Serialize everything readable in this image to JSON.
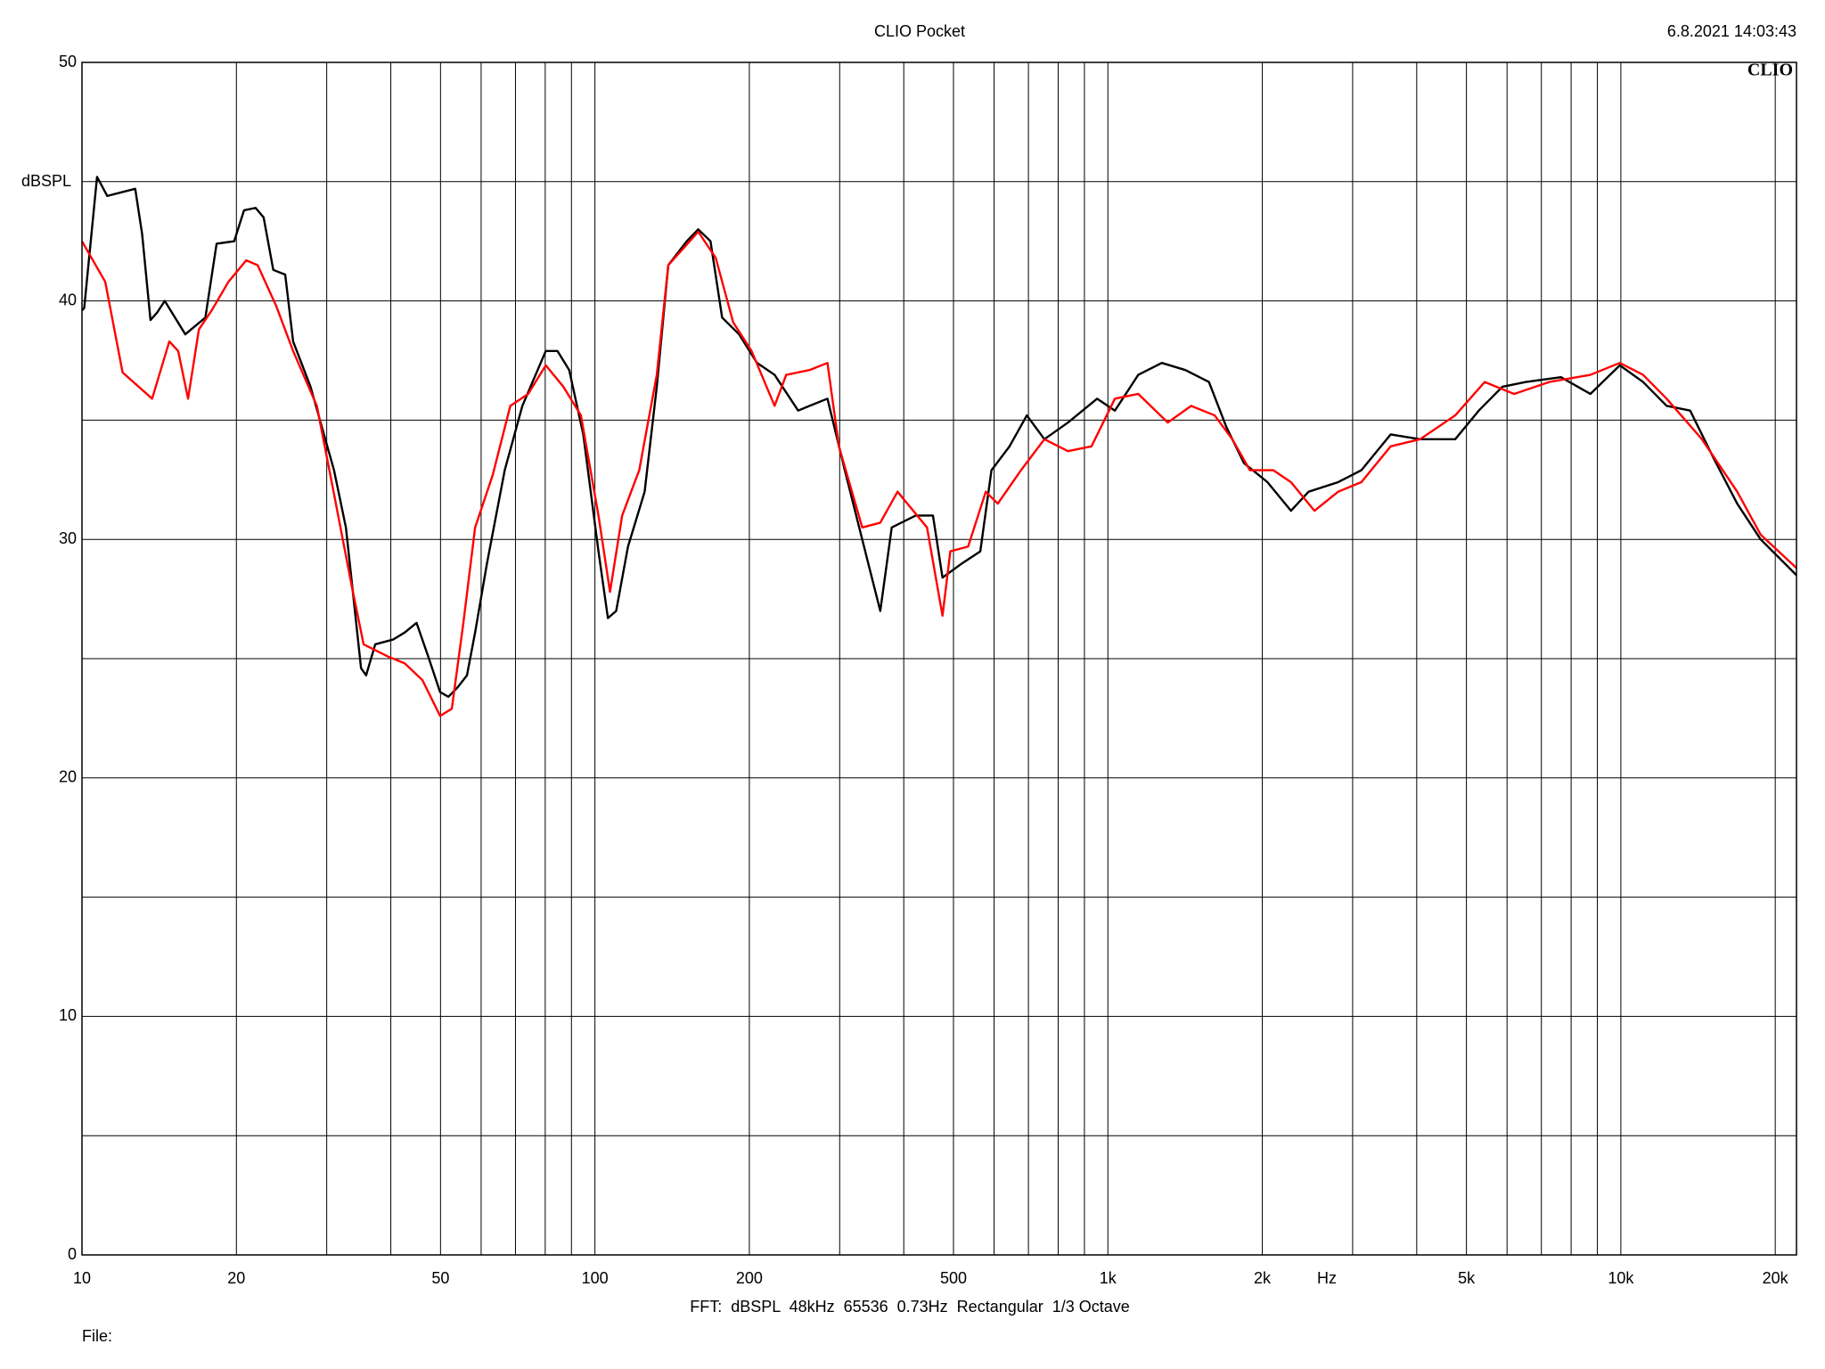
{
  "chart_data": {
    "type": "line",
    "title": "CLIO Pocket",
    "timestamp": "6.8.2021 14:03:43",
    "logo": "CLIO",
    "subtitle": "FFT:  dBSPL  48kHz  65536  0.73Hz  Rectangular  1/3 Octave",
    "file_label": "File:",
    "x_label": "Hz",
    "y_label": "dBSPL",
    "x_log": true,
    "grid": true,
    "xlim": [
      10,
      22000
    ],
    "ylim": [
      0,
      50
    ],
    "xticks": [
      10,
      20,
      50,
      100,
      200,
      500,
      {
        "value": 1000,
        "label": "1k"
      },
      {
        "value": 2000,
        "label": "2k"
      },
      {
        "value": 5000,
        "label": "5k"
      },
      {
        "value": 10000,
        "label": "10k"
      },
      {
        "value": 20000,
        "label": "20k"
      }
    ],
    "x_minor_ticks": [
      30,
      40,
      60,
      70,
      80,
      90,
      300,
      400,
      600,
      700,
      800,
      900,
      3000,
      4000,
      6000,
      7000,
      8000,
      9000
    ],
    "yticks": [
      0,
      10,
      20,
      30,
      40,
      50
    ],
    "y_minor_ticks": [
      5,
      15,
      25,
      35,
      45
    ],
    "series": [
      {
        "color": "#000000",
        "x": [
          10,
          10.1,
          10.7,
          11.2,
          12.7,
          13.1,
          13.6,
          14.0,
          14.5,
          15.9,
          17.4,
          18.3,
          19.8,
          20.7,
          21.8,
          22.6,
          23.6,
          24.9,
          25.8,
          27.9,
          31.0,
          32.7,
          35.0,
          35.8,
          37.3,
          40.4,
          42.6,
          44.9,
          47.3,
          49.9,
          51.8,
          54.0,
          56.3,
          58.4,
          61.6,
          66.7,
          72.2,
          80.2,
          84.5,
          89.1,
          94.9,
          101.6,
          106,
          110,
          116,
          125,
          132,
          139,
          151,
          159,
          168,
          177,
          191,
          207,
          224,
          249,
          262,
          284,
          307,
          341,
          360,
          379,
          422,
          456,
          476,
          520,
          564,
          593,
          643,
          695,
          752,
          836,
          953,
          1032,
          1146,
          1274,
          1416,
          1574,
          1703,
          1842,
          2047,
          2275,
          2462,
          2811,
          3120,
          3558,
          4061,
          4755,
          5285,
          5875,
          6530,
          7643,
          8722,
          9954,
          11050,
          12280,
          13650,
          15170,
          16860,
          18730,
          22000
        ],
        "values": [
          39.6,
          39.7,
          45.2,
          44.4,
          44.7,
          42.8,
          39.2,
          39.5,
          40.0,
          38.6,
          39.3,
          42.4,
          42.5,
          43.8,
          43.9,
          43.5,
          41.3,
          41.1,
          38.3,
          36.4,
          32.9,
          30.5,
          24.6,
          24.3,
          25.6,
          25.8,
          26.1,
          26.5,
          25.1,
          23.6,
          23.4,
          23.8,
          24.3,
          26.1,
          29.0,
          32.9,
          35.6,
          37.9,
          37.9,
          37.1,
          34.4,
          29.5,
          26.7,
          27.0,
          29.7,
          32.0,
          36.4,
          41.5,
          42.5,
          43.0,
          42.5,
          39.3,
          38.6,
          37.4,
          36.9,
          35.4,
          35.6,
          35.9,
          32.9,
          29.0,
          27.0,
          30.5,
          31.0,
          31.0,
          28.4,
          29.0,
          29.5,
          32.9,
          33.9,
          35.2,
          34.2,
          34.9,
          35.9,
          35.4,
          36.9,
          37.4,
          37.1,
          36.6,
          34.7,
          33.2,
          32.4,
          31.2,
          32.0,
          32.4,
          32.9,
          34.4,
          34.2,
          34.2,
          35.4,
          36.4,
          36.6,
          36.8,
          36.1,
          37.3,
          36.6,
          35.6,
          35.4,
          33.4,
          31.5,
          30.0,
          28.5
        ]
      },
      {
        "color": "#ff0000",
        "x": [
          10,
          11.1,
          12.0,
          13.7,
          14.8,
          15.4,
          16.1,
          16.9,
          17.9,
          19.3,
          20.9,
          22.0,
          23.9,
          25.8,
          28.7,
          31.0,
          33.6,
          35.4,
          39.4,
          42.6,
          46.1,
          49.9,
          52.6,
          55.4,
          58.4,
          63.2,
          68.4,
          74.1,
          80.2,
          86.8,
          93.9,
          101.6,
          107,
          113,
          122,
          132,
          139,
          159,
          172,
          186,
          202,
          224,
          236,
          262,
          284,
          299,
          332,
          360,
          389,
          444,
          476,
          493,
          534,
          578,
          610,
          677,
          752,
          836,
          929,
          1032,
          1146,
          1309,
          1453,
          1615,
          1748,
          1892,
          2102,
          2275,
          2528,
          2811,
          3120,
          3558,
          4061,
          4755,
          5428,
          6193,
          7252,
          8722,
          9954,
          11050,
          12280,
          14390,
          16860,
          18730,
          22000
        ],
        "values": [
          42.5,
          40.8,
          37.0,
          35.9,
          38.3,
          37.9,
          35.9,
          38.8,
          39.6,
          40.8,
          41.7,
          41.5,
          39.8,
          37.9,
          35.6,
          31.9,
          28.0,
          25.6,
          25.1,
          24.8,
          24.1,
          22.6,
          22.9,
          26.5,
          30.5,
          32.7,
          35.6,
          36.1,
          37.3,
          36.4,
          35.2,
          31.0,
          27.8,
          31.0,
          32.9,
          36.9,
          41.5,
          42.9,
          41.8,
          39.1,
          37.9,
          35.6,
          36.9,
          37.1,
          37.4,
          33.9,
          30.5,
          30.7,
          32.0,
          30.5,
          26.8,
          29.5,
          29.7,
          32.0,
          31.5,
          32.9,
          34.2,
          33.7,
          33.9,
          35.9,
          36.1,
          34.9,
          35.6,
          35.2,
          34.2,
          32.9,
          32.9,
          32.4,
          31.2,
          32.0,
          32.4,
          33.9,
          34.2,
          35.2,
          36.6,
          36.1,
          36.6,
          36.9,
          37.4,
          36.9,
          35.9,
          34.2,
          32.0,
          30.2,
          28.8
        ]
      }
    ]
  }
}
